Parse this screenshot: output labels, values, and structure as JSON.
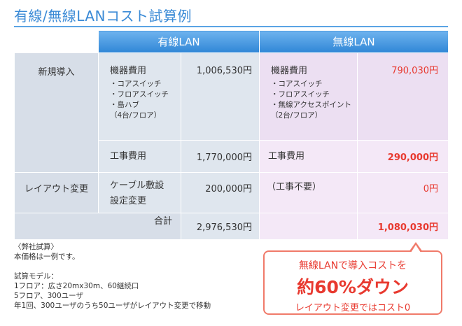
{
  "title": "有線/無線LANコスト試算例",
  "headers": {
    "wired": "有線LAN",
    "wireless": "無線LAN"
  },
  "rows": {
    "new_install": {
      "label": "新規導入",
      "equipment": {
        "label": "機器費用",
        "wired_items": [
          "・コアスイッチ",
          "・フロアスイッチ",
          "・島ハブ",
          "（4台/フロア）"
        ],
        "wired_amount": "1,006,530円",
        "wireless_label": "機器費用",
        "wireless_items": [
          "・コアスイッチ",
          "・フロアスイッチ",
          "・無線アクセスポイント",
          "（2台/フロア）"
        ],
        "wireless_amount": "790,030円"
      },
      "construction": {
        "label": "工事費用",
        "wired_amount": "1,770,000円",
        "wireless_label": "工事費用",
        "wireless_amount": "290,000円"
      }
    },
    "layout_change": {
      "label": "レイアウト変更",
      "wired_lines": [
        "ケーブル敷設",
        "設定変更"
      ],
      "wired_amount": "200,000円",
      "wireless_label": "（工事不要）",
      "wireless_amount": "0円"
    },
    "total": {
      "label": "合計",
      "wired_amount": "2,976,530円",
      "wireless_amount": "1,080,030円"
    }
  },
  "notes": {
    "source": "〈弊社試算〉",
    "disclaimer": "本価格は一例です。",
    "model_title": "試算モデル：",
    "model_lines": [
      "1フロア：広さ20mx30m、60継続口",
      "5フロア、300ユーザ",
      "年1回、300ユーザのうち50ユーザがレイアウト変更で移動"
    ]
  },
  "callout": {
    "line1": "無線LANで導入コストを",
    "line2": "約60%ダウン",
    "line3": "レイアウト変更ではコスト0"
  },
  "colors": {
    "accent": "#3a8ad6",
    "highlight": "#e8392f"
  }
}
